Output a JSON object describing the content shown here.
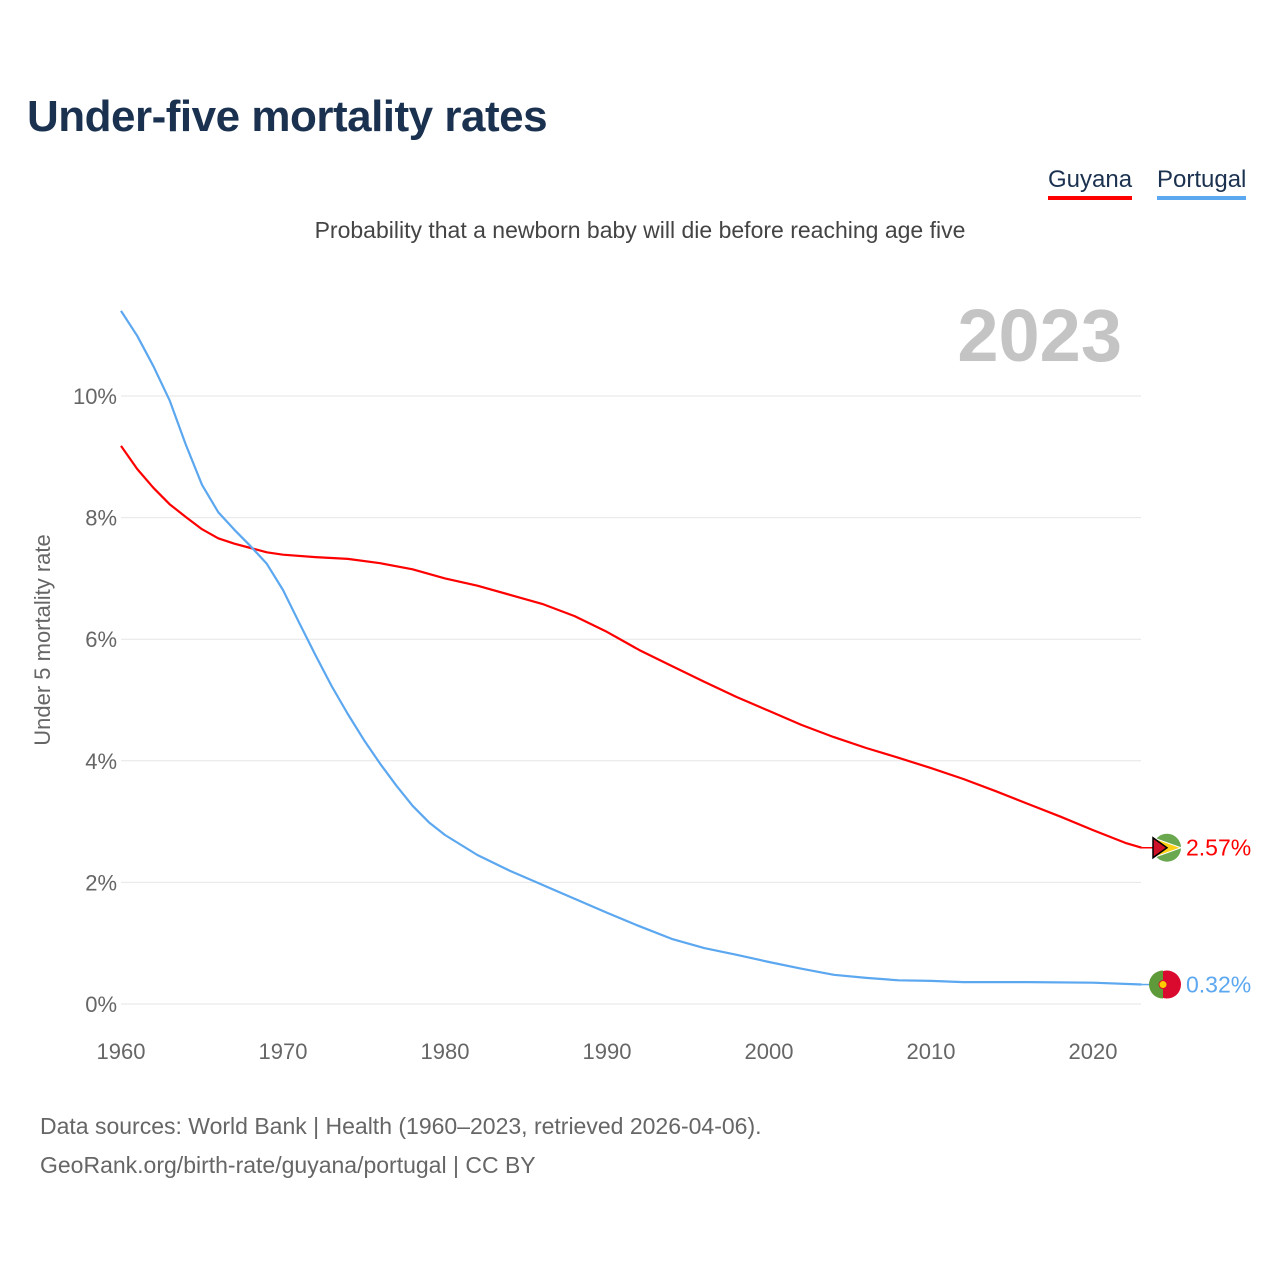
{
  "title": "Under-five mortality rates",
  "subtitle": "Probability that a newborn baby will die before reaching age five",
  "source_line1": "Data sources: World Bank | Health (1960–2023, retrieved 2026-04-06).",
  "source_line2": "GeoRank.org/birth-rate/guyana/portugal | CC BY",
  "chart_data": {
    "type": "line",
    "title": "Under-five mortality rates",
    "ylabel": "Under 5 mortality rate",
    "xlabel": "",
    "year_label": "2023",
    "xlim": [
      1960,
      2023
    ],
    "ylim": [
      0,
      11.6
    ],
    "xticks": [
      "1960",
      "1970",
      "1980",
      "1990",
      "2000",
      "2010",
      "2020"
    ],
    "yticks": [
      "0%",
      "2%",
      "4%",
      "6%",
      "8%",
      "10%"
    ],
    "grid": true,
    "legend": "top-right",
    "series": [
      {
        "name": "Guyana",
        "color": "#ff0000",
        "end_label": "2.57%",
        "x": [
          1960,
          1961,
          1962,
          1963,
          1964,
          1965,
          1966,
          1967,
          1968,
          1969,
          1970,
          1972,
          1974,
          1976,
          1978,
          1980,
          1982,
          1984,
          1986,
          1988,
          1990,
          1992,
          1994,
          1996,
          1998,
          2000,
          2002,
          2004,
          2006,
          2008,
          2010,
          2012,
          2014,
          2016,
          2018,
          2020,
          2022,
          2023
        ],
        "y": [
          9.18,
          8.8,
          8.49,
          8.22,
          8.01,
          7.81,
          7.66,
          7.57,
          7.5,
          7.43,
          7.39,
          7.35,
          7.32,
          7.25,
          7.15,
          7.0,
          6.88,
          6.73,
          6.58,
          6.38,
          6.12,
          5.82,
          5.56,
          5.3,
          5.05,
          4.82,
          4.59,
          4.39,
          4.21,
          4.05,
          3.88,
          3.7,
          3.5,
          3.29,
          3.08,
          2.86,
          2.65,
          2.57
        ]
      },
      {
        "name": "Portugal",
        "color": "#5ba7f0",
        "end_label": "0.32%",
        "x": [
          1960,
          1961,
          1962,
          1963,
          1964,
          1965,
          1966,
          1967,
          1968,
          1969,
          1970,
          1971,
          1972,
          1973,
          1974,
          1975,
          1976,
          1977,
          1978,
          1979,
          1980,
          1982,
          1984,
          1986,
          1988,
          1990,
          1992,
          1994,
          1996,
          1998,
          2000,
          2002,
          2004,
          2006,
          2008,
          2010,
          2012,
          2016,
          2020,
          2023
        ],
        "y": [
          11.4,
          10.99,
          10.49,
          9.93,
          9.2,
          8.54,
          8.09,
          7.8,
          7.53,
          7.24,
          6.81,
          6.27,
          5.74,
          5.23,
          4.77,
          4.34,
          3.95,
          3.59,
          3.26,
          2.99,
          2.78,
          2.45,
          2.19,
          1.96,
          1.73,
          1.5,
          1.28,
          1.07,
          0.92,
          0.81,
          0.69,
          0.58,
          0.48,
          0.43,
          0.39,
          0.38,
          0.36,
          0.36,
          0.35,
          0.32
        ]
      }
    ]
  }
}
